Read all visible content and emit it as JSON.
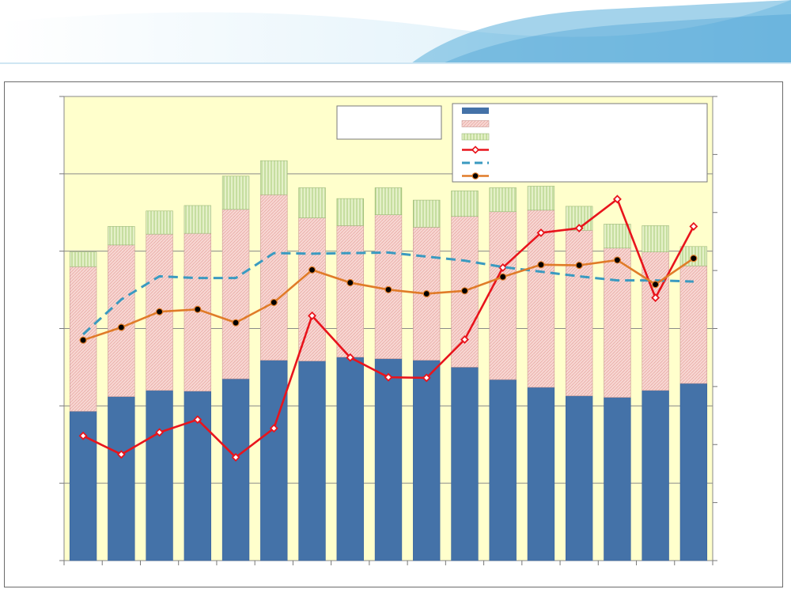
{
  "colors": {
    "plot_background": "#FFFFCC",
    "bar_series_1": "#4472A8",
    "bar_series_2": "#F2C4C0",
    "bar_series_3": "#D6E9B4",
    "line_series_1": "#E8141C",
    "line_series_2": "#3A9AC0",
    "line_series_3": "#E07B28",
    "header_wave": "#8CC8E8"
  },
  "chart_data": {
    "type": "bar",
    "stacked": true,
    "title": "",
    "xlabel": "",
    "ylabel": "",
    "y2label": "",
    "grid": true,
    "legend_position": "top-right",
    "tick_labels_visible": false,
    "ylim": [
      0,
      6
    ],
    "y2lim": [
      0,
      8
    ],
    "primary_ticks": [
      0,
      1,
      2,
      3,
      4,
      5,
      6
    ],
    "secondary_ticks": [
      0,
      1,
      2,
      3,
      4,
      5,
      6,
      7,
      8
    ],
    "categories": [
      "",
      "",
      "",
      "",
      "",
      "",
      "",
      "",
      "",
      "",
      "",
      "",
      "",
      "",
      "",
      "",
      ""
    ],
    "series": [
      {
        "kind": "bar",
        "axis": "primary",
        "color": "#4472A8",
        "values": [
          1.93,
          2.12,
          2.2,
          2.19,
          2.35,
          2.59,
          2.58,
          2.63,
          2.61,
          2.59,
          2.5,
          2.34,
          2.24,
          2.13,
          2.11,
          2.2,
          2.29
        ]
      },
      {
        "kind": "bar",
        "axis": "primary",
        "color": "#F2C4C0",
        "values": [
          1.87,
          1.96,
          2.02,
          2.04,
          2.19,
          2.14,
          1.85,
          1.7,
          1.86,
          1.72,
          1.95,
          2.17,
          2.29,
          2.14,
          1.93,
          1.79,
          1.52
        ]
      },
      {
        "kind": "bar",
        "axis": "primary",
        "color": "#D6E9B4",
        "values": [
          0.19,
          0.24,
          0.3,
          0.36,
          0.43,
          0.44,
          0.39,
          0.35,
          0.35,
          0.35,
          0.33,
          0.31,
          0.31,
          0.31,
          0.31,
          0.34,
          0.25
        ]
      },
      {
        "kind": "line",
        "axis": "secondary",
        "color": "#E8141C",
        "marker": "diamond-open",
        "dash": false,
        "values": [
          2.15,
          1.83,
          2.21,
          2.43,
          1.78,
          2.28,
          4.22,
          3.5,
          3.16,
          3.15,
          3.81,
          5.05,
          5.65,
          5.73,
          6.23,
          4.53,
          5.76
        ]
      },
      {
        "kind": "line",
        "axis": "secondary",
        "color": "#3A9AC0",
        "marker": "none",
        "dash": true,
        "values": [
          3.9,
          4.5,
          4.9,
          4.87,
          4.87,
          5.3,
          5.29,
          5.3,
          5.31,
          5.24,
          5.17,
          5.06,
          4.98,
          4.9,
          4.83,
          4.83,
          4.81
        ]
      },
      {
        "kind": "line",
        "axis": "secondary",
        "color": "#E07B28",
        "marker": "dot",
        "dash": false,
        "values": [
          3.8,
          4.02,
          4.29,
          4.33,
          4.1,
          4.45,
          5.01,
          4.79,
          4.67,
          4.6,
          4.65,
          4.89,
          5.1,
          5.09,
          5.18,
          4.76,
          5.21
        ]
      }
    ],
    "legend": {
      "entries": [
        {
          "label": "",
          "symbol": "bar-solid",
          "color": "#4472A8"
        },
        {
          "label": "",
          "symbol": "bar-pattern",
          "color": "#F2C4C0"
        },
        {
          "label": "",
          "symbol": "bar-pattern-green",
          "color": "#D6E9B4"
        },
        {
          "label": "",
          "symbol": "line-diamond",
          "color": "#E8141C"
        },
        {
          "label": "",
          "symbol": "line-dash",
          "color": "#3A9AC0"
        },
        {
          "label": "",
          "symbol": "line-dot",
          "color": "#E07B28"
        }
      ]
    },
    "annotation_box": {
      "text": ""
    }
  }
}
